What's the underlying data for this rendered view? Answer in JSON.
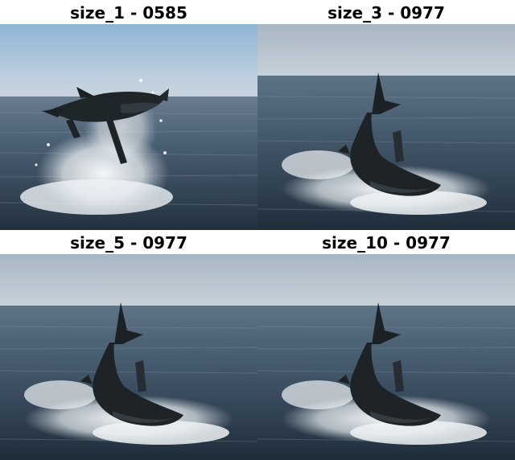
{
  "panels": [
    {
      "title": "size_1 - 0585",
      "scene": "shark-breach-airborne"
    },
    {
      "title": "size_3 - 0977",
      "scene": "shark-breach-tail-up"
    },
    {
      "title": "size_5 - 0977",
      "scene": "shark-breach-tail-up"
    },
    {
      "title": "size_10 - 0977",
      "scene": "shark-breach-tail-up"
    }
  ],
  "colors": {
    "sky_top": "#8fb4d6",
    "sky_haze": "#c9d4dc",
    "sea_far": "#5d7186",
    "sea_near": "#243746",
    "shark_dark": "#1d2327",
    "shark_belly": "#3a4248",
    "splash": "#f2f6f8"
  }
}
